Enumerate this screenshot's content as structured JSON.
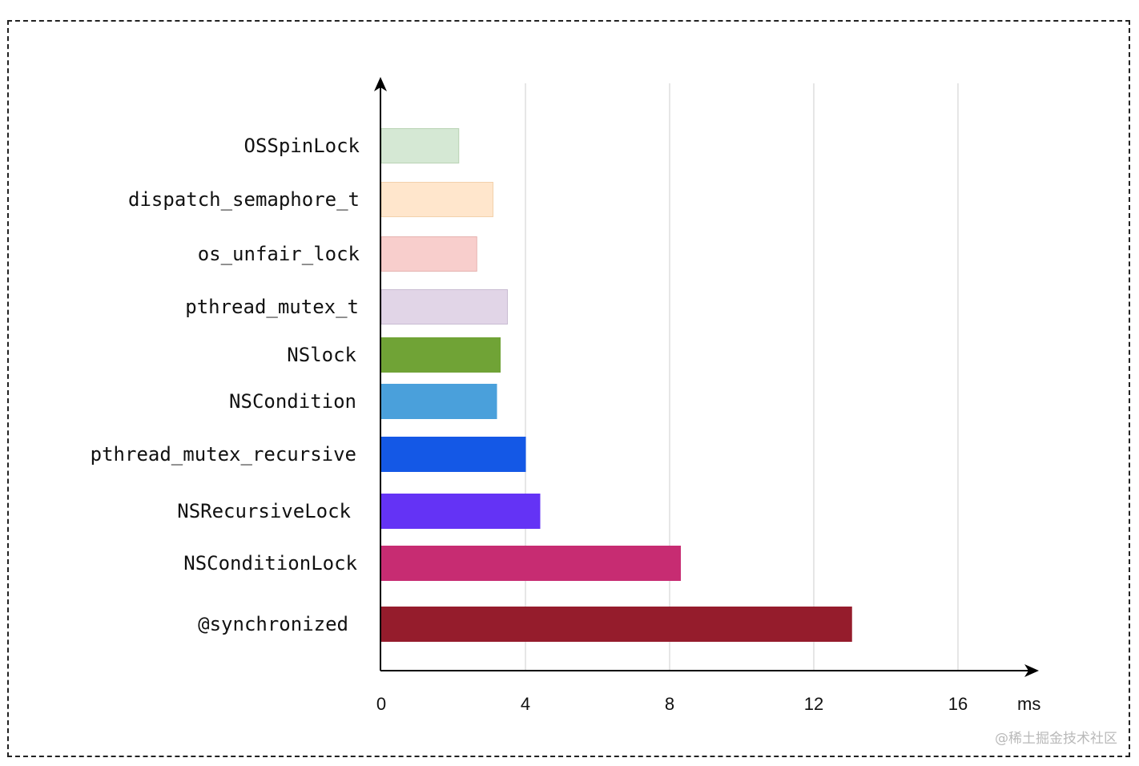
{
  "chart_data": {
    "type": "bar",
    "orientation": "horizontal",
    "categories": [
      "OSSpinLock",
      "dispatch_semaphore_t",
      "os_unfair_lock",
      "pthread_mutex_t",
      "NSlock",
      "NSCondition",
      "pthread_mutex_recursive",
      "NSRecursiveLock",
      "NSConditionLock",
      "@synchronized"
    ],
    "values": [
      2.15,
      3.1,
      2.65,
      3.5,
      3.3,
      3.2,
      4.0,
      4.4,
      8.3,
      13.05
    ],
    "colors": [
      "#d5e8d4",
      "#ffe6cc",
      "#f8cecc",
      "#e1d5e7",
      "#70a336",
      "#4aa0db",
      "#1458e6",
      "#6433f5",
      "#c72c72",
      "#951c2c"
    ],
    "borders": [
      "#b9d3b5",
      "#f2d1ac",
      "#e6b3b0",
      "#c9bcd2",
      "#70a336",
      "#4aa0db",
      "#1458e6",
      "#6433f5",
      "#c72c72",
      "#951c2c"
    ],
    "x_ticks": [
      "0",
      "4",
      "8",
      "12",
      "16"
    ],
    "x_unit": "ms",
    "xlim": [
      0,
      16
    ],
    "grid": "vertical",
    "title": "",
    "xlabel": "ms",
    "ylabel": ""
  },
  "watermark": "@稀土掘金技术社区"
}
